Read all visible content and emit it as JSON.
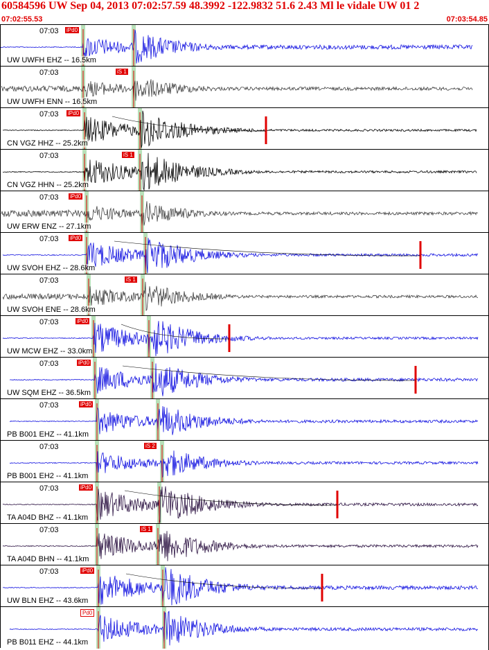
{
  "header": {
    "title": "60584596 UW Sep 04, 2013 07:02:57.59    48.3992 -122.9832 51.6 2.43 Ml le vidale UW 01    2",
    "time_start": "07:02:55.53",
    "time_end": "07:03:54.85"
  },
  "colors": {
    "header": "#e00000",
    "pick": "#e00000",
    "phase_band": "#b8e0b8",
    "blue": "#1010e0",
    "black": "#000000",
    "gray": "#404040",
    "purple": "#2a1040"
  },
  "traces": [
    {
      "tick": "07:03",
      "label": "UW UWFH EHZ -- 16.5km",
      "color": "blue",
      "pick": "iPd0",
      "pick_style": "filled"
    },
    {
      "tick": "07:03",
      "label": "UW UWFH ENN -- 16.5km",
      "color": "gray",
      "pick": "iS 1",
      "pick_style": "filled"
    },
    {
      "tick": "07:03",
      "label": "CN VGZ HHZ -- 25.2km",
      "color": "black",
      "pick": "iPd0",
      "pick_style": "filled"
    },
    {
      "tick": "07:03",
      "label": "CN VGZ HHN -- 25.2km",
      "color": "black",
      "pick": "iS 1",
      "pick_style": "filled"
    },
    {
      "tick": "07:03",
      "label": "UW ERW ENZ -- 27.1km",
      "color": "gray",
      "pick": "iPd0",
      "pick_style": "filled"
    },
    {
      "tick": "07:03",
      "label": "UW SVOH EHZ -- 28.6km",
      "color": "blue",
      "pick": "iPd0",
      "pick_style": "filled"
    },
    {
      "tick": "07:03",
      "label": "UW SVOH ENE -- 28.6km",
      "color": "gray",
      "pick": "iS 1",
      "pick_style": "filled"
    },
    {
      "tick": "07:03",
      "label": "UW MCW EHZ -- 33.0km",
      "color": "blue",
      "pick": "iPd0",
      "pick_style": "filled"
    },
    {
      "tick": "07:03",
      "label": "UW SQM EHZ -- 36.5km",
      "color": "blue",
      "pick": "iPd0",
      "pick_style": "filled"
    },
    {
      "tick": "07:03",
      "label": "PB B001 EHZ -- 41.1km",
      "color": "blue",
      "pick": "iPd0",
      "pick_style": "filled"
    },
    {
      "tick": "07:03",
      "label": "PB B001 EH2 -- 41.1km",
      "color": "blue",
      "pick": "iS 2",
      "pick_style": "filled"
    },
    {
      "tick": "07:03",
      "label": "TA A04D BHZ -- 41.1km",
      "color": "purple",
      "pick": "iPd0",
      "pick_style": "filled"
    },
    {
      "tick": "07:03",
      "label": "TA A04D BHN -- 41.1km",
      "color": "purple",
      "pick": "iS 1",
      "pick_style": "filled"
    },
    {
      "tick": "07:03",
      "label": "UW BLN EHZ -- 43.6km",
      "color": "blue",
      "pick": "iPd0",
      "pick_style": "filled"
    },
    {
      "tick": "",
      "label": "PB B011 EHZ -- 44.1km",
      "color": "blue",
      "pick": "Pd0",
      "pick_style": "outline"
    }
  ]
}
